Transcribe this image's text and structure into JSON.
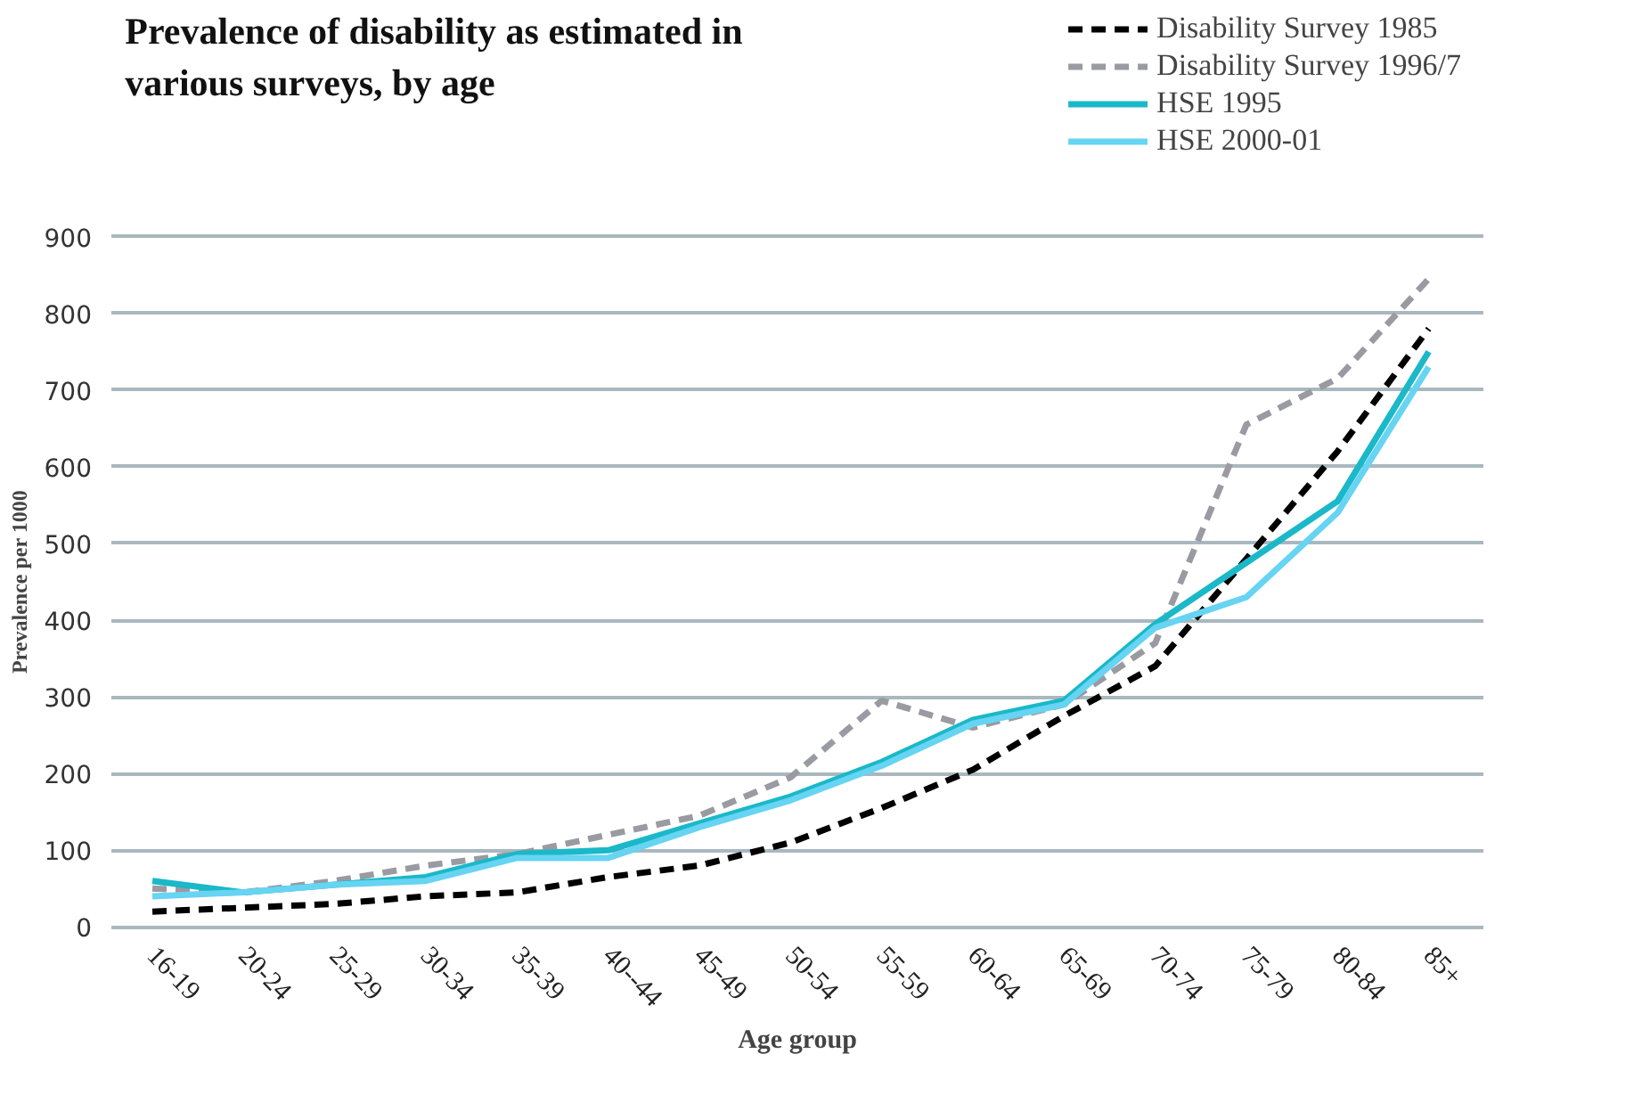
{
  "chart_data": {
    "type": "line",
    "title": "Prevalence of disability as estimated in\nvarious surveys, by age",
    "xlabel": "Age group",
    "ylabel": "Prevalence per 1000",
    "categories": [
      "16-19",
      "20-24",
      "25-29",
      "30-34",
      "35-39",
      "40--44",
      "45-49",
      "50-54",
      "55-59",
      "60-64",
      "65-69",
      "70-74",
      "75-79",
      "80-84",
      "85+"
    ],
    "series": [
      {
        "name": "Disability Survey 1985",
        "color": "#000000",
        "line_style": "dashed",
        "values": [
          20,
          25,
          30,
          40,
          45,
          65,
          80,
          110,
          155,
          205,
          275,
          340,
          480,
          620,
          780
        ]
      },
      {
        "name": "Disability Survey 1996/7",
        "color": "#9a9aa2",
        "line_style": "dashed",
        "values": [
          50,
          45,
          60,
          80,
          95,
          120,
          145,
          195,
          295,
          260,
          290,
          370,
          655,
          715,
          845
        ]
      },
      {
        "name": "HSE 1995",
        "color": "#1ab8c8",
        "line_style": "solid",
        "values": [
          60,
          45,
          55,
          65,
          95,
          100,
          135,
          170,
          215,
          270,
          295,
          395,
          475,
          555,
          750
        ]
      },
      {
        "name": "HSE 2000-01",
        "color": "#66d4f2",
        "line_style": "solid",
        "values": [
          40,
          45,
          55,
          60,
          90,
          90,
          130,
          165,
          210,
          265,
          290,
          390,
          430,
          540,
          730
        ]
      }
    ],
    "ylim": [
      0,
      900
    ],
    "yticks": [
      0,
      100,
      200,
      300,
      400,
      500,
      600,
      700,
      800,
      900
    ],
    "grid": "y",
    "legend": "top right",
    "marker": "none"
  }
}
